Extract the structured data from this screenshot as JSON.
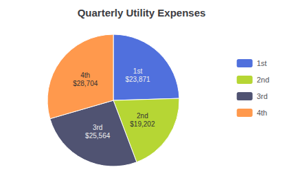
{
  "chart_data": {
    "type": "pie",
    "title": "Quarterly Utility Expenses",
    "categories": [
      "1st",
      "2nd",
      "3rd",
      "4th"
    ],
    "values": [
      23871,
      19202,
      25564,
      28704
    ],
    "value_labels": [
      "1st\n$23,871",
      "2nd\n$19,202",
      "3rd\n$25,564",
      "4th\n$28,704"
    ],
    "data_labels": true,
    "legend": "right"
  }
}
